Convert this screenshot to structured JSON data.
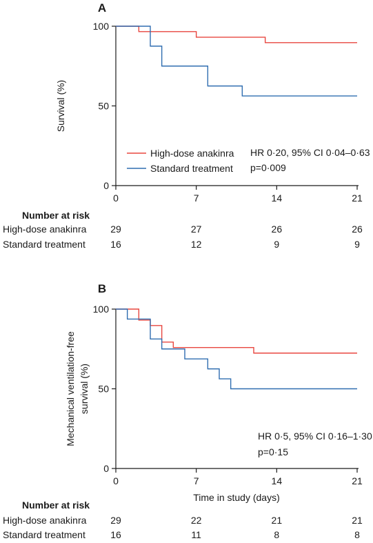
{
  "chart_data": [
    {
      "type": "line",
      "panel": "A",
      "ylabel": "Survival (%)",
      "xlabel": "",
      "xlim": [
        0,
        21
      ],
      "ylim": [
        0,
        100
      ],
      "x_ticks": [
        0,
        7,
        14,
        21
      ],
      "y_ticks": [
        0,
        50,
        100
      ],
      "grid": false,
      "legend_placement": "bottom-center",
      "series": [
        {
          "name": "High-dose anakinra",
          "color": "#e8463f",
          "step": true,
          "x": [
            0,
            2,
            7,
            13,
            21
          ],
          "y": [
            100,
            96.6,
            93.1,
            89.7,
            89.7
          ]
        },
        {
          "name": "Standard treatment",
          "color": "#2f6db0",
          "step": true,
          "x": [
            0,
            3,
            4,
            8,
            11,
            21
          ],
          "y": [
            100,
            87.5,
            75,
            62.5,
            56.25,
            56.25
          ]
        }
      ],
      "annotations": [
        "HR 0·20, 95% CI 0·04–0·63",
        "p=0·009"
      ],
      "risk_table": {
        "title": "Number at risk",
        "rows": [
          {
            "label": "High-dose anakinra",
            "values": [
              29,
              27,
              26,
              26
            ]
          },
          {
            "label": "Standard treatment",
            "values": [
              16,
              12,
              9,
              9
            ]
          }
        ]
      }
    },
    {
      "type": "line",
      "panel": "B",
      "ylabel": "Mechanical ventilation-free survival (%)",
      "ylabel_lines": [
        "Mechanical ventilation-free",
        "survival (%)"
      ],
      "xlabel": "Time in study (days)",
      "xlim": [
        0,
        21
      ],
      "ylim": [
        0,
        100
      ],
      "x_ticks": [
        0,
        7,
        14,
        21
      ],
      "y_ticks": [
        0,
        50,
        100
      ],
      "grid": false,
      "series": [
        {
          "name": "High-dose anakinra",
          "color": "#e8463f",
          "step": true,
          "x": [
            0,
            2,
            3,
            4,
            5,
            6,
            12,
            21
          ],
          "y": [
            100,
            93.1,
            89.7,
            79.3,
            75.9,
            75.9,
            72.4,
            72.4
          ]
        },
        {
          "name": "Standard treatment",
          "color": "#2f6db0",
          "step": true,
          "x": [
            0,
            1,
            3,
            4,
            6,
            8,
            9,
            10,
            21
          ],
          "y": [
            100,
            93.75,
            81.25,
            75,
            68.75,
            62.5,
            56.25,
            50,
            50
          ]
        }
      ],
      "annotations": [
        "HR 0·5, 95% CI 0·16–1·30",
        "p=0·15"
      ],
      "risk_table": {
        "title": "Number at risk",
        "rows": [
          {
            "label": "High-dose anakinra",
            "values": [
              29,
              22,
              21,
              21
            ]
          },
          {
            "label": "Standard treatment",
            "values": [
              16,
              11,
              8,
              8
            ]
          }
        ]
      }
    }
  ]
}
